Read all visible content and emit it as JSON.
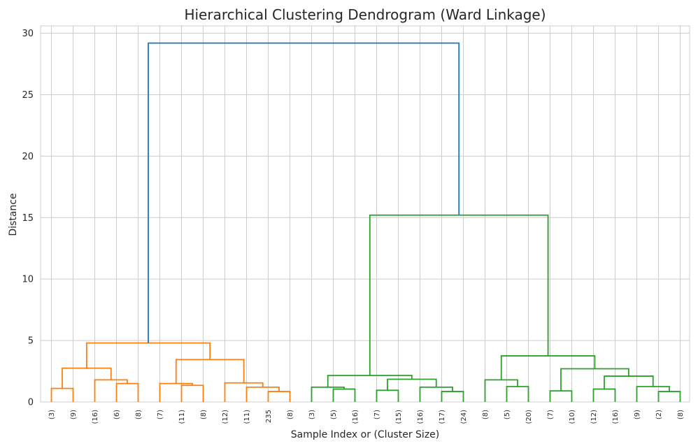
{
  "chart_data": {
    "type": "dendrogram",
    "title": "Hierarchical Clustering Dendrogram (Ward Linkage)",
    "xlabel": "Sample Index or (Cluster Size)",
    "ylabel": "Distance",
    "ylim": [
      0,
      30.6
    ],
    "yticks": [
      0,
      5,
      10,
      15,
      20,
      25,
      30
    ],
    "grid": true,
    "colors": {
      "cluster1": "#ff7f0e",
      "cluster2": "#2ca02c",
      "root": "#1f77b4",
      "grid": "#cccccc"
    },
    "leaves": [
      "(3)",
      "(9)",
      "(16)",
      "(6)",
      "(8)",
      "(7)",
      "(11)",
      "(8)",
      "(12)",
      "(11)",
      "235",
      "(8)",
      "(3)",
      "(5)",
      "(16)",
      "(7)",
      "(15)",
      "(16)",
      "(17)",
      "(24)",
      "(8)",
      "(5)",
      "(20)",
      "(7)",
      "(10)",
      "(12)",
      "(16)",
      "(9)",
      "(2)",
      "(8)"
    ],
    "merges": [
      {
        "a": 0,
        "b": 1,
        "h": 1.1,
        "color": "cluster1"
      },
      {
        "a": 3,
        "b": 4,
        "h": 1.5,
        "color": "cluster1"
      },
      {
        "a": 2,
        "b": "m1",
        "h": 1.8,
        "color": "cluster1"
      },
      {
        "a": "m0",
        "b": "m2",
        "h": 2.75,
        "color": "cluster1"
      },
      {
        "a": 6,
        "b": 7,
        "h": 1.35,
        "color": "cluster1"
      },
      {
        "a": 5,
        "b": "m4",
        "h": 1.5,
        "color": "cluster1"
      },
      {
        "a": 10,
        "b": 11,
        "h": 0.85,
        "color": "cluster1"
      },
      {
        "a": 9,
        "b": "m6",
        "h": 1.2,
        "color": "cluster1"
      },
      {
        "a": 8,
        "b": "m7",
        "h": 1.55,
        "color": "cluster1"
      },
      {
        "a": "m5",
        "b": "m8",
        "h": 3.45,
        "color": "cluster1"
      },
      {
        "a": "m3",
        "b": "m9",
        "h": 4.8,
        "color": "cluster1"
      },
      {
        "a": 13,
        "b": 14,
        "h": 1.05,
        "color": "cluster2"
      },
      {
        "a": 12,
        "b": "m11",
        "h": 1.2,
        "color": "cluster2"
      },
      {
        "a": 15,
        "b": 16,
        "h": 0.95,
        "color": "cluster2"
      },
      {
        "a": 18,
        "b": 19,
        "h": 0.85,
        "color": "cluster2"
      },
      {
        "a": 17,
        "b": "m14",
        "h": 1.2,
        "color": "cluster2"
      },
      {
        "a": "m13",
        "b": "m15",
        "h": 1.85,
        "color": "cluster2"
      },
      {
        "a": "m12",
        "b": "m16",
        "h": 2.15,
        "color": "cluster2"
      },
      {
        "a": 21,
        "b": 22,
        "h": 1.25,
        "color": "cluster2"
      },
      {
        "a": 20,
        "b": "m18",
        "h": 1.8,
        "color": "cluster2"
      },
      {
        "a": 23,
        "b": 24,
        "h": 0.9,
        "color": "cluster2"
      },
      {
        "a": 25,
        "b": 26,
        "h": 1.05,
        "color": "cluster2"
      },
      {
        "a": 28,
        "b": 29,
        "h": 0.85,
        "color": "cluster2"
      },
      {
        "a": 27,
        "b": "m22",
        "h": 1.25,
        "color": "cluster2"
      },
      {
        "a": "m21",
        "b": "m23",
        "h": 2.1,
        "color": "cluster2"
      },
      {
        "a": "m20",
        "b": "m24",
        "h": 2.7,
        "color": "cluster2"
      },
      {
        "a": "m19",
        "b": "m25",
        "h": 3.75,
        "color": "cluster2"
      },
      {
        "a": "m17",
        "b": "m26",
        "h": 15.2,
        "color": "cluster2"
      },
      {
        "a": "m10",
        "b": "m27",
        "h": 29.2,
        "color": "root"
      }
    ]
  }
}
